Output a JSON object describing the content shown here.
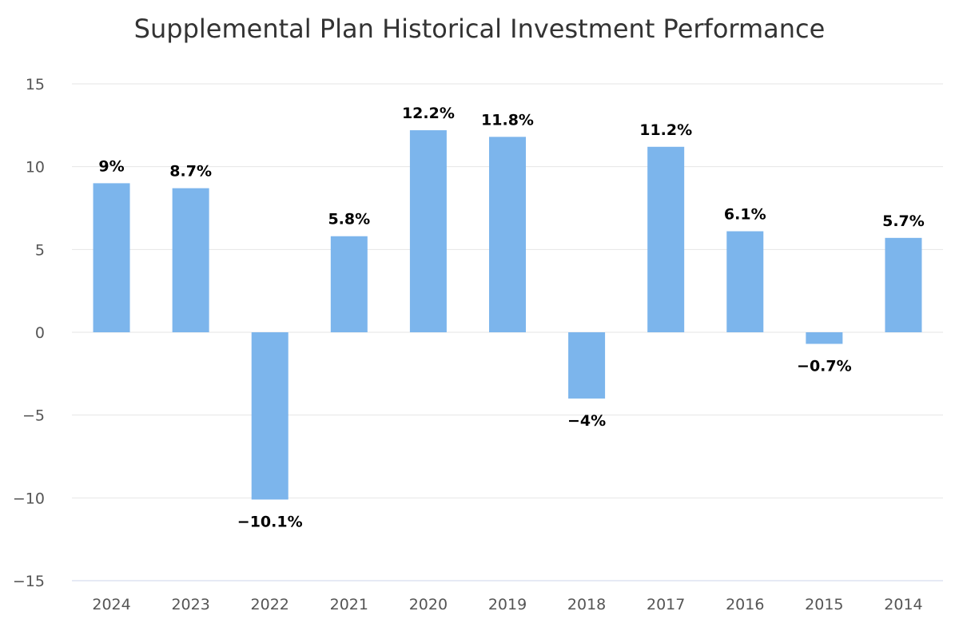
{
  "chart_data": {
    "type": "bar",
    "title": "Supplemental Plan Historical Investment Performance",
    "xlabel": "",
    "ylabel": "",
    "categories": [
      "2024",
      "2023",
      "2022",
      "2021",
      "2020",
      "2019",
      "2018",
      "2017",
      "2016",
      "2015",
      "2014"
    ],
    "values": [
      9,
      8.7,
      -10.1,
      5.8,
      12.2,
      11.8,
      -4,
      11.2,
      6.1,
      -0.7,
      5.7
    ],
    "data_labels": [
      "9%",
      "8.7%",
      "−10.1%",
      "5.8%",
      "12.2%",
      "11.8%",
      "−4%",
      "11.2%",
      "6.1%",
      "−0.7%",
      "5.7%"
    ],
    "ylim": [
      -15,
      15
    ],
    "yticks": [
      15,
      10,
      5,
      0,
      -5,
      -10,
      -15
    ],
    "ytick_labels": [
      "15",
      "10",
      "5",
      "0",
      "−5",
      "−10",
      "−15"
    ],
    "grid": true,
    "legend": "none",
    "bar_color": "#7cb5ec"
  }
}
